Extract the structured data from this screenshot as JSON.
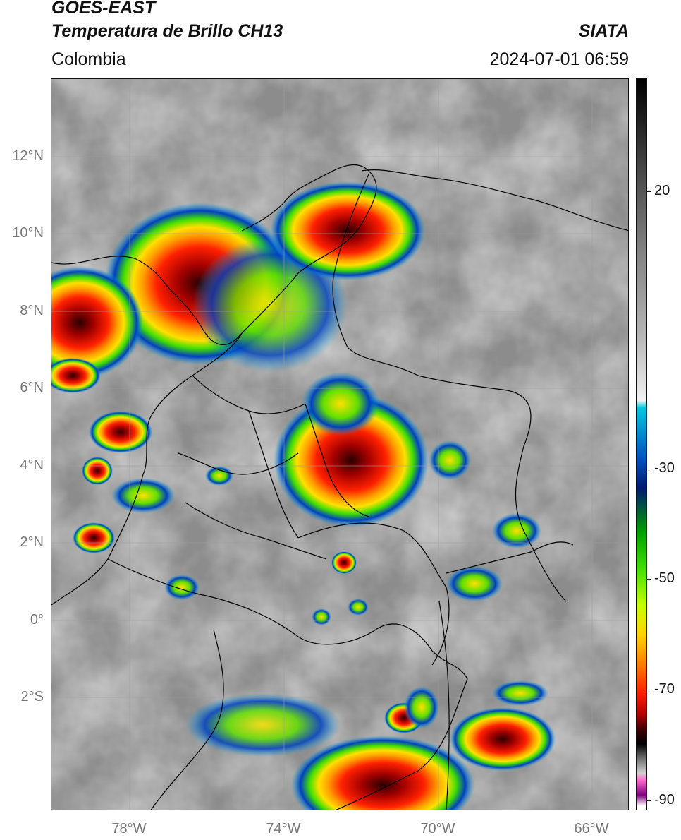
{
  "header": {
    "title_line1": "GOES-EAST",
    "title_line2": "Temperatura de Brillo CH13",
    "brand": "SIATA",
    "region": "Colombia",
    "timestamp": "2024-07-01 06:59"
  },
  "map": {
    "lat_labels": [
      "12°N",
      "10°N",
      "8°N",
      "6°N",
      "4°N",
      "2°N",
      "0°",
      "2°S"
    ],
    "lon_labels": [
      "78°W",
      "74°W",
      "70°W",
      "66°W"
    ]
  },
  "colorbar": {
    "labels": [
      "20",
      "-30",
      "-50",
      "-70",
      "-90"
    ],
    "colors": [
      "#000000",
      "#3a3a3a",
      "#7a7a7a",
      "#b5b5b5",
      "#f2f2f2",
      "#00c8e0",
      "#0050c0",
      "#001a70",
      "#00a000",
      "#40e000",
      "#c8ff00",
      "#ffd400",
      "#ff8000",
      "#ff2000",
      "#b00000",
      "#400000",
      "#000000",
      "#707070",
      "#d0d0d0",
      "#ff66cc",
      "#800080",
      "#ffffff"
    ]
  }
}
